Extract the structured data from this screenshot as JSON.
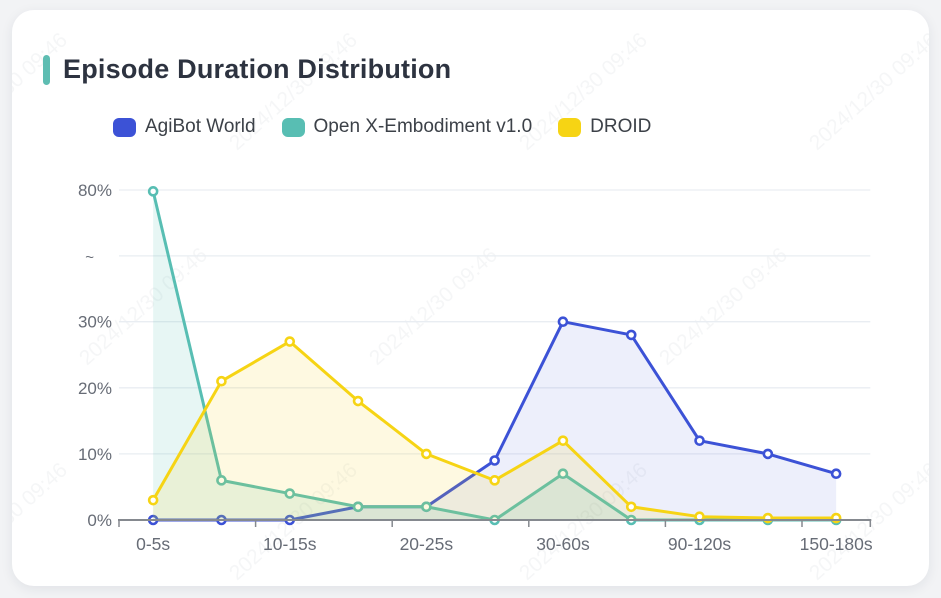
{
  "title": {
    "text": "Episode Duration Distribution",
    "accent_color": "#5ebdb2"
  },
  "watermark": {
    "text": "2024/12/30 09:46"
  },
  "chart_data": {
    "type": "line",
    "title": "Episode Duration Distribution",
    "unit": "%",
    "categories": [
      "0-5s",
      "",
      "10-15s",
      "",
      "20-25s",
      "",
      "30-60s",
      "",
      "90-120s",
      "",
      "150-180s"
    ],
    "x_labels_shown": [
      "0-5s",
      "10-15s",
      "20-25s",
      "30-60s",
      "90-120s",
      "150-180s"
    ],
    "y_ticks": [
      {
        "label": "0%",
        "value": 0
      },
      {
        "label": "10%",
        "value": 10
      },
      {
        "label": "20%",
        "value": 20
      },
      {
        "label": "30%",
        "value": 30
      },
      {
        "label": "~",
        "value": "break"
      },
      {
        "label": "80%",
        "value": 80
      }
    ],
    "y_axis_break": {
      "from": 30,
      "to": 80
    },
    "ylim": [
      0,
      80
    ],
    "grid": true,
    "legend_position": "top",
    "series": [
      {
        "name": "AgiBot World",
        "color": "#3c52d6",
        "fill": "rgba(60,82,214,0.09)",
        "values": [
          0,
          0,
          0,
          2,
          2,
          9,
          30,
          28,
          12,
          10,
          7
        ]
      },
      {
        "name": "Open X-Embodiment v1.0",
        "color": "#58beb3",
        "fill": "rgba(88,190,179,0.14)",
        "values": [
          79.5,
          6,
          4,
          2,
          2,
          0,
          7,
          0,
          0,
          0,
          0
        ]
      },
      {
        "name": "DROID",
        "color": "#f6d414",
        "fill": "rgba(246,212,20,0.13)",
        "values": [
          3,
          21,
          27,
          18,
          10,
          6,
          12,
          2,
          0.5,
          0.3,
          0.3
        ]
      }
    ]
  }
}
